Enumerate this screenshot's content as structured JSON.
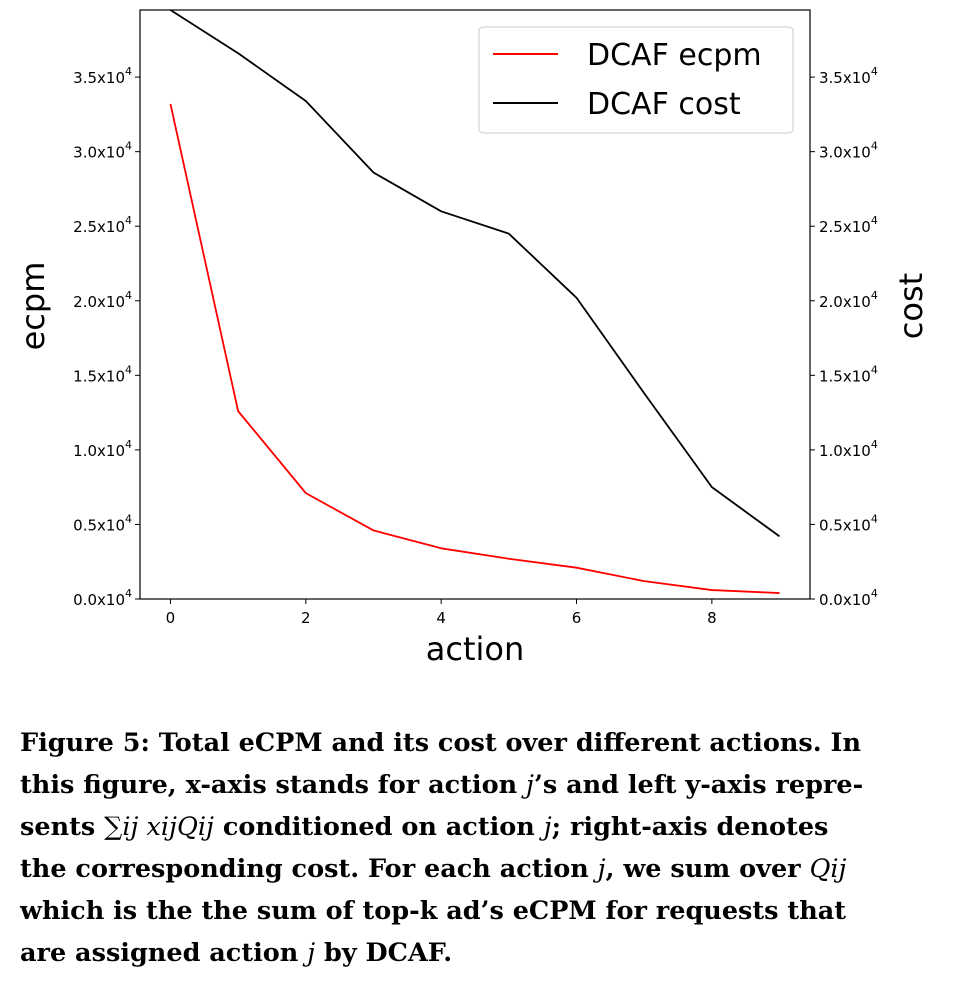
{
  "chart_data": {
    "type": "line",
    "xlabel": "action",
    "ylabel": "ecpm",
    "y2label": "cost",
    "x": [
      0,
      1,
      2,
      3,
      4,
      5,
      6,
      7,
      8,
      9
    ],
    "xticks": [
      0,
      2,
      4,
      6,
      8
    ],
    "xlim": [
      -0.45,
      9.45
    ],
    "ylim": [
      0,
      39500
    ],
    "y2lim": [
      0,
      39500
    ],
    "yticks": [
      0,
      5000,
      10000,
      15000,
      20000,
      25000,
      30000,
      35000
    ],
    "ytick_labels": [
      {
        "mant": "0.0x10",
        "exp": "4"
      },
      {
        "mant": "0.5x10",
        "exp": "4"
      },
      {
        "mant": "1.0x10",
        "exp": "4"
      },
      {
        "mant": "1.5x10",
        "exp": "4"
      },
      {
        "mant": "2.0x10",
        "exp": "4"
      },
      {
        "mant": "2.5x10",
        "exp": "4"
      },
      {
        "mant": "3.0x10",
        "exp": "4"
      },
      {
        "mant": "3.5x10",
        "exp": "4"
      }
    ],
    "series": [
      {
        "name": "DCAF ecpm",
        "color": "#ff0000",
        "axis": "left",
        "values": [
          33200,
          12600,
          7100,
          4600,
          3400,
          2700,
          2100,
          1200,
          600,
          400
        ]
      },
      {
        "name": "DCAF cost",
        "color": "#000000",
        "axis": "right",
        "values": [
          39500,
          36600,
          33400,
          28600,
          26000,
          24500,
          20200,
          13800,
          7500,
          4200
        ]
      }
    ],
    "legend_position": "top-right",
    "grid": false
  },
  "caption": {
    "line1": "Figure 5:  Total eCPM and its cost over different actions. In",
    "line2a": "this figure, x-axis stands for action ",
    "line2_j": "j",
    "line2b": "’s and left y-axis repre-",
    "line3a": "sents ",
    "line3_sum": "∑ij xijQij",
    "line3b": " conditioned on action ",
    "line3_j": "j",
    "line3c": "; right-axis denotes",
    "line4a": "the corresponding cost. For each action ",
    "line4_j": "j",
    "line4b": ", we sum over ",
    "line4_q": "Qij",
    "line5": "which is the the sum of top-k ad’s eCPM for requests that",
    "line6a": "are assigned action ",
    "line6_j": "j",
    "line6b": " by DCAF."
  }
}
